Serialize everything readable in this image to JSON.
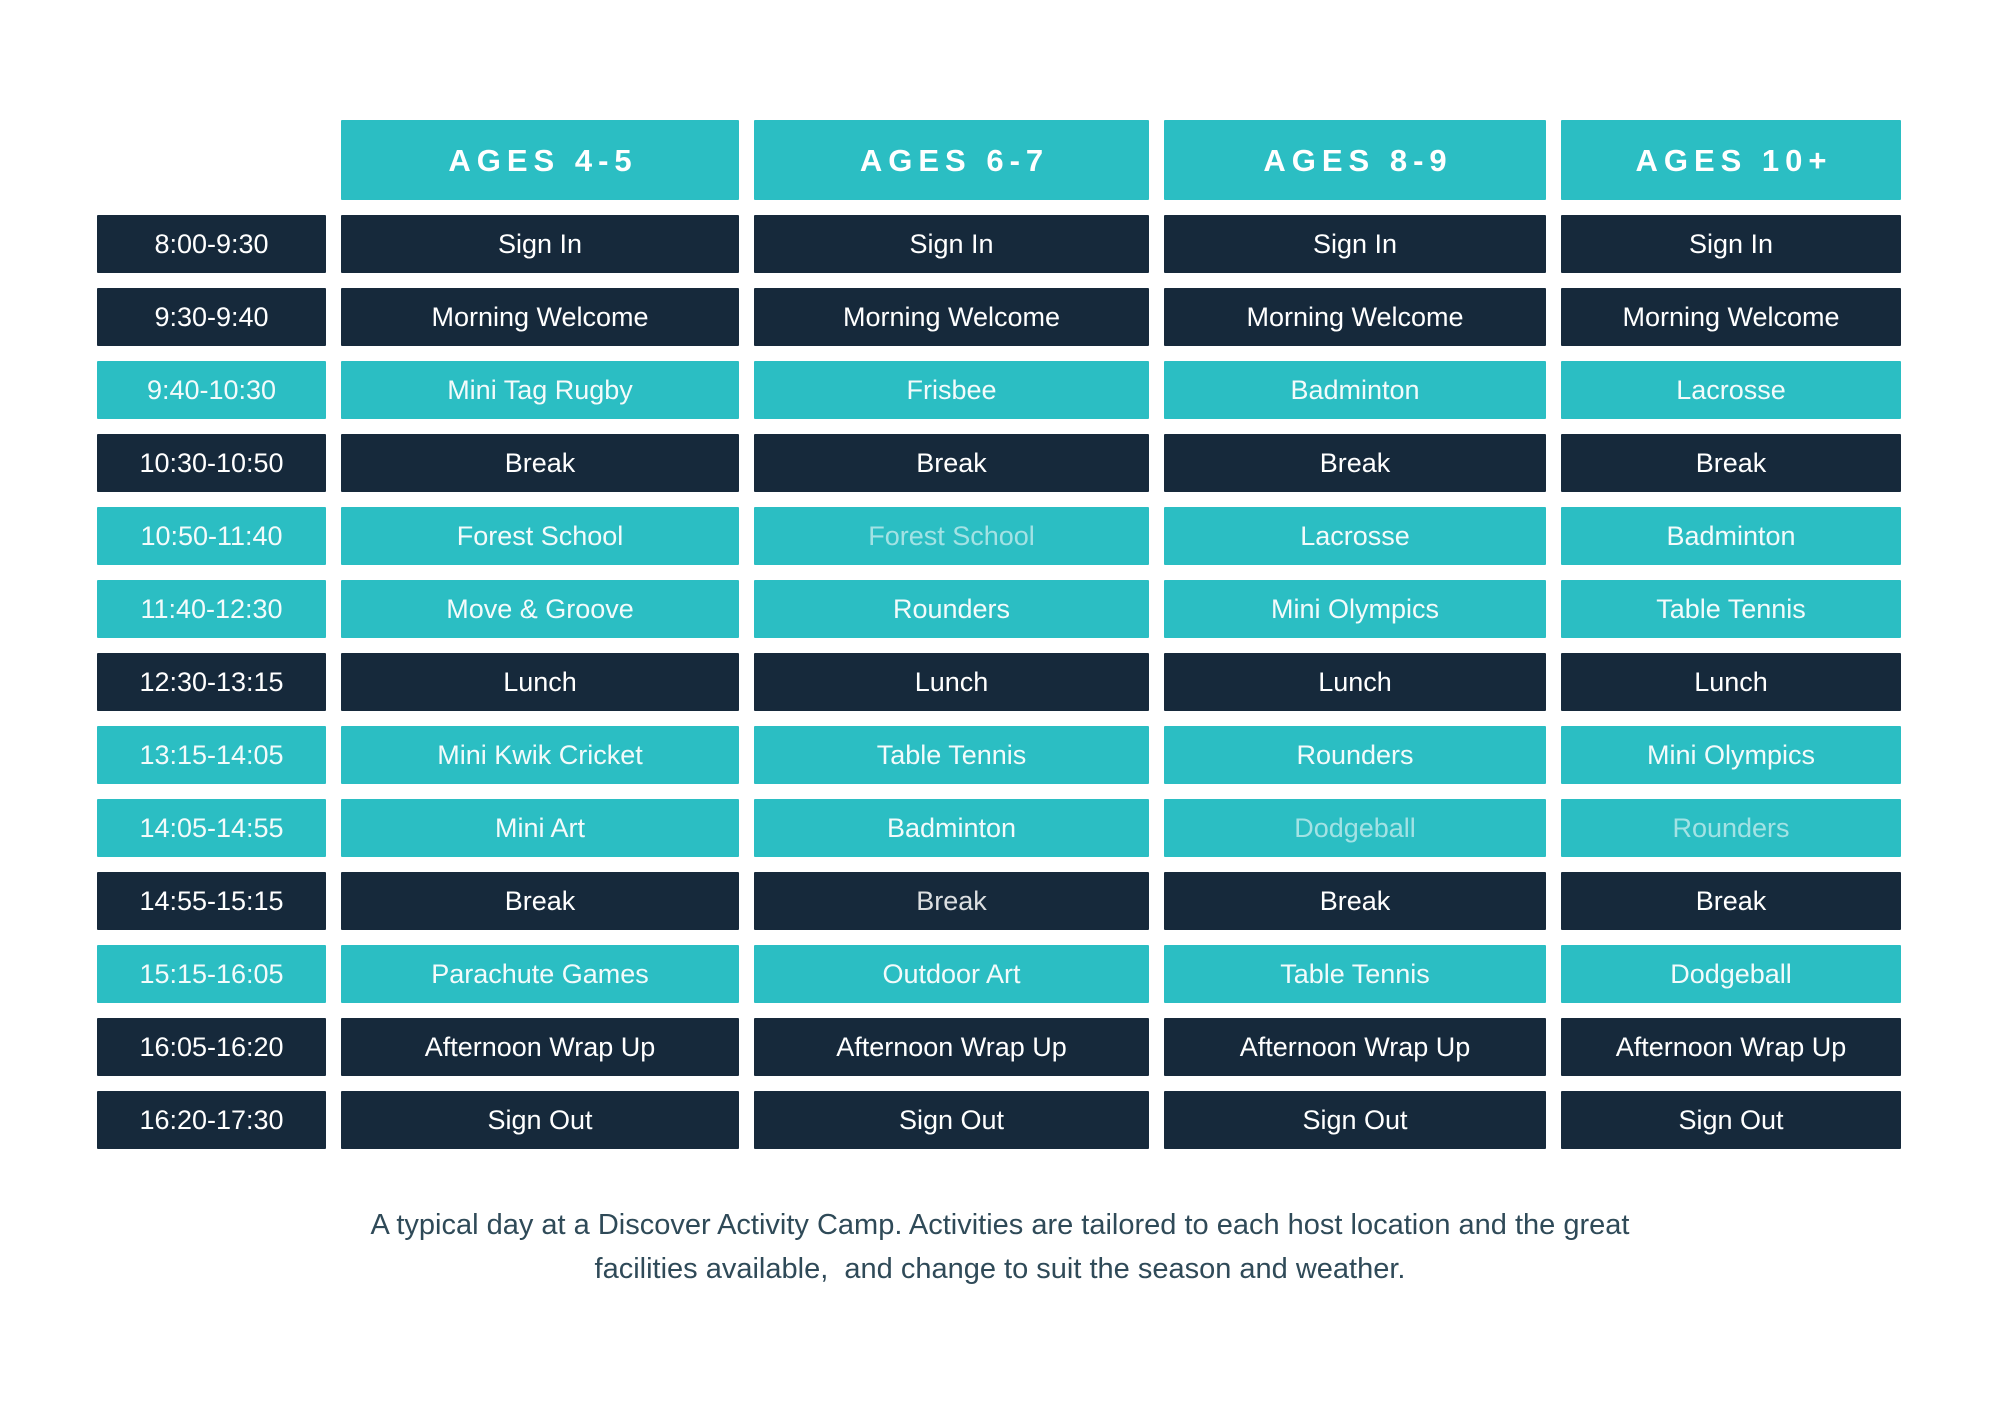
{
  "colors": {
    "teal": "#2BBEC3",
    "navy": "#16293B",
    "page_bg": "#FFFFFF",
    "text_on_navy": "#FFFFFF",
    "text_on_teal": "#F3FBFB",
    "footer_text": "#2F4A58"
  },
  "header": {
    "columns": [
      "AGES 4-5",
      "AGES 6-7",
      "AGES 8-9",
      "AGES 10+"
    ]
  },
  "schedule": {
    "rows": [
      {
        "time": "8:00-9:30",
        "theme": "navy",
        "activities": [
          {
            "text": "Sign In"
          },
          {
            "text": "Sign In"
          },
          {
            "text": "Sign In"
          },
          {
            "text": "Sign In"
          }
        ]
      },
      {
        "time": "9:30-9:40",
        "theme": "navy",
        "activities": [
          {
            "text": "Morning Welcome"
          },
          {
            "text": "Morning Welcome"
          },
          {
            "text": "Morning Welcome"
          },
          {
            "text": "Morning Welcome"
          }
        ]
      },
      {
        "time": "9:40-10:30",
        "theme": "teal",
        "activities": [
          {
            "text": "Mini Tag Rugby"
          },
          {
            "text": "Frisbee"
          },
          {
            "text": "Badminton"
          },
          {
            "text": "Lacrosse"
          }
        ]
      },
      {
        "time": "10:30-10:50",
        "theme": "navy",
        "activities": [
          {
            "text": "Break"
          },
          {
            "text": "Break"
          },
          {
            "text": "Break"
          },
          {
            "text": "Break"
          }
        ]
      },
      {
        "time": "10:50-11:40",
        "theme": "teal",
        "activities": [
          {
            "text": "Forest School"
          },
          {
            "text": "Forest School",
            "muted": true
          },
          {
            "text": "Lacrosse"
          },
          {
            "text": "Badminton"
          }
        ]
      },
      {
        "time": "11:40-12:30",
        "theme": "teal",
        "activities": [
          {
            "text": "Move & Groove"
          },
          {
            "text": "Rounders"
          },
          {
            "text": "Mini Olympics"
          },
          {
            "text": "Table Tennis"
          }
        ]
      },
      {
        "time": "12:30-13:15",
        "theme": "navy",
        "activities": [
          {
            "text": "Lunch"
          },
          {
            "text": "Lunch"
          },
          {
            "text": "Lunch"
          },
          {
            "text": "Lunch"
          }
        ]
      },
      {
        "time": "13:15-14:05",
        "theme": "teal",
        "activities": [
          {
            "text": "Mini Kwik Cricket"
          },
          {
            "text": "Table Tennis"
          },
          {
            "text": "Rounders"
          },
          {
            "text": "Mini Olympics"
          }
        ]
      },
      {
        "time": "14:05-14:55",
        "theme": "teal",
        "activities": [
          {
            "text": "Mini Art"
          },
          {
            "text": "Badminton"
          },
          {
            "text": "Dodgeball",
            "muted": true
          },
          {
            "text": "Rounders",
            "muted": true
          }
        ]
      },
      {
        "time": "14:55-15:15",
        "theme": "navy",
        "activities": [
          {
            "text": "Break"
          },
          {
            "text": "Break",
            "muted": true
          },
          {
            "text": "Break"
          },
          {
            "text": "Break"
          }
        ]
      },
      {
        "time": "15:15-16:05",
        "theme": "teal",
        "activities": [
          {
            "text": "Parachute Games"
          },
          {
            "text": "Outdoor Art"
          },
          {
            "text": "Table Tennis"
          },
          {
            "text": "Dodgeball"
          }
        ]
      },
      {
        "time": "16:05-16:20",
        "theme": "navy",
        "activities": [
          {
            "text": "Afternoon Wrap Up"
          },
          {
            "text": "Afternoon Wrap Up"
          },
          {
            "text": "Afternoon Wrap Up"
          },
          {
            "text": "Afternoon Wrap Up"
          }
        ]
      },
      {
        "time": "16:20-17:30",
        "theme": "navy",
        "activities": [
          {
            "text": "Sign Out"
          },
          {
            "text": "Sign Out"
          },
          {
            "text": "Sign Out"
          },
          {
            "text": "Sign Out"
          }
        ]
      }
    ]
  },
  "footer": {
    "line1": "A typical day at a Discover Activity Camp. Activities are tailored to each host location and the great",
    "line2": "facilities available,  and change to suit the season and weather."
  }
}
